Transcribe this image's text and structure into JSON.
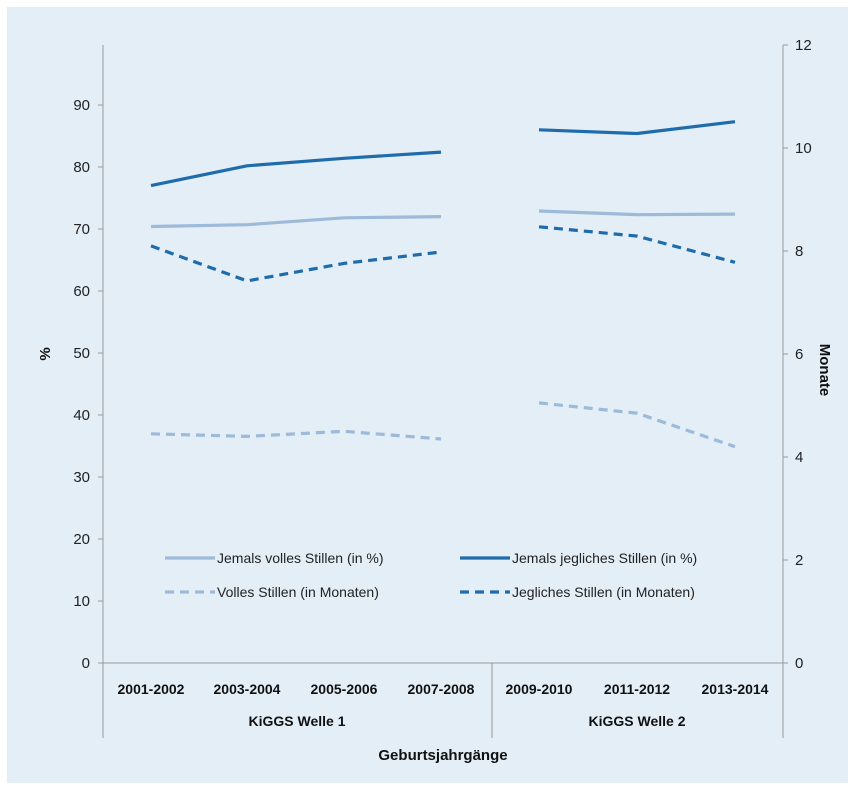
{
  "chart_data": {
    "type": "line",
    "categories": [
      "2001-2002",
      "2003-2004",
      "2005-2006",
      "2007-2008",
      "2009-2010",
      "2011-2012",
      "2013-2014"
    ],
    "groups": [
      {
        "label": "KiGGS Welle 1",
        "categories": [
          "2001-2002",
          "2003-2004",
          "2005-2006",
          "2007-2008"
        ]
      },
      {
        "label": "KiGGS Welle 2",
        "categories": [
          "2009-2010",
          "2011-2012",
          "2013-2014"
        ]
      }
    ],
    "xlabel": "Geburtsjahrgänge",
    "ylabel_left": "%",
    "ylabel_right": "Monate",
    "ylim_left": [
      0,
      100
    ],
    "ylim_right": [
      0,
      12
    ],
    "yticks_left": [
      0,
      10,
      20,
      30,
      40,
      50,
      60,
      70,
      80,
      90
    ],
    "yticks_right": [
      0,
      2,
      4,
      6,
      8,
      10,
      12
    ],
    "legend_position": "bottom-center",
    "series": [
      {
        "name": "Jemals volles Stillen (in %)",
        "axis": "left",
        "style": "solid",
        "color": "#9dbad9",
        "values": [
          70.4,
          70.7,
          71.8,
          72.0,
          72.9,
          72.3,
          72.4
        ]
      },
      {
        "name": "Jemals jegliches Stillen (in %)",
        "axis": "left",
        "style": "solid",
        "color": "#1f6cad",
        "values": [
          77.0,
          80.2,
          81.4,
          82.4,
          86.0,
          85.4,
          87.3
        ]
      },
      {
        "name": "Volles Stillen (in Monaten)",
        "axis": "right",
        "style": "dashed",
        "color": "#9dbad9",
        "values": [
          4.45,
          4.4,
          4.5,
          4.35,
          5.05,
          4.85,
          4.2
        ]
      },
      {
        "name": "Jegliches Stillen (in Monaten)",
        "axis": "right",
        "style": "dashed",
        "color": "#1f6cad",
        "values": [
          8.1,
          7.42,
          7.76,
          7.98,
          8.47,
          8.29,
          7.78
        ]
      }
    ]
  }
}
